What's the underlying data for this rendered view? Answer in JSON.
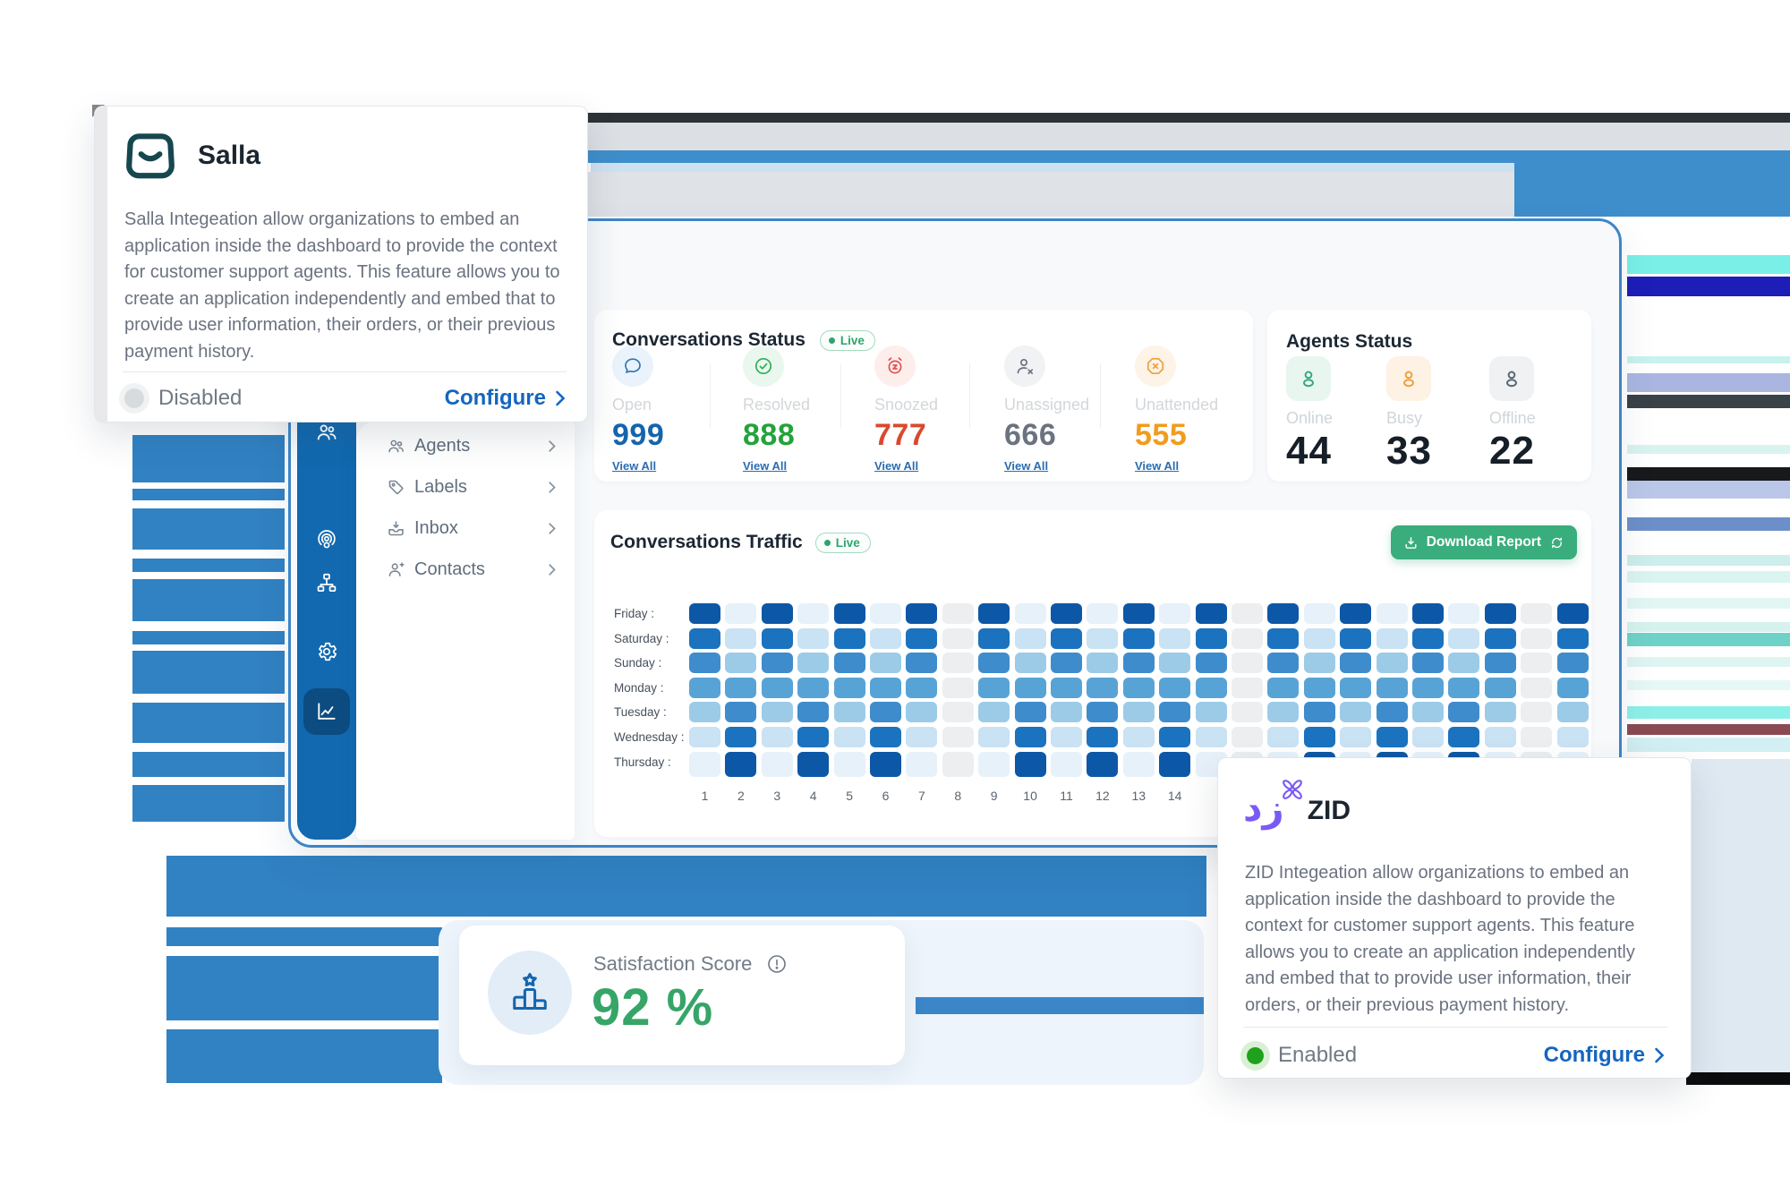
{
  "salla_card": {
    "title": "Salla",
    "description": "Salla Integeation allow organizations to embed an application inside the dashboard to provide the context for customer support agents. This feature allows you to create an application independently and embed that to provide user information, their orders, or their previous payment history.",
    "status_label": "Disabled",
    "configure_label": "Configure"
  },
  "zid_card": {
    "title": "ZID",
    "logo_text": "زد",
    "description": "ZID Integeation allow organizations to embed an application inside the dashboard to provide the context for customer support agents. This feature allows you to create an application independently and embed that to provide user information, their orders, or their previous payment history.",
    "status_label": "Enabled",
    "configure_label": "Configure"
  },
  "sidebar": {
    "rail_icons": [
      "team-icon",
      "analytics-icon",
      "broadcast-icon",
      "sitemap-icon",
      "settings-icon"
    ],
    "active_icon": "analytics-icon",
    "menu": [
      {
        "label": "Agents",
        "icon": "agents-icon"
      },
      {
        "label": "Labels",
        "icon": "labels-icon"
      },
      {
        "label": "Inbox",
        "icon": "inbox-icon"
      },
      {
        "label": "Contacts",
        "icon": "contacts-icon"
      }
    ]
  },
  "status_panel": {
    "title": "Conversations Status",
    "live_label": "Live",
    "view_all_label": "View All",
    "items": [
      {
        "label": "Open",
        "value": "999",
        "color": "#1565ab",
        "icon": "chat-icon",
        "icon_bg": "#eaf3fb",
        "icon_color": "#2e77b6"
      },
      {
        "label": "Resolved",
        "value": "888",
        "color": "#23a33a",
        "icon": "check-circle-icon",
        "icon_bg": "#e9f7ee",
        "icon_color": "#2fae52"
      },
      {
        "label": "Snoozed",
        "value": "777",
        "color": "#d9492f",
        "icon": "alarm-icon",
        "icon_bg": "#fdeeec",
        "icon_color": "#e05252"
      },
      {
        "label": "Unassigned",
        "value": "666",
        "color": "#6b7280",
        "icon": "user-x-icon",
        "icon_bg": "#f1f2f4",
        "icon_color": "#6b7280"
      },
      {
        "label": "Unattended",
        "value": "555",
        "color": "#f29b1d",
        "icon": "circle-x-icon",
        "icon_bg": "#fdf3e6",
        "icon_color": "#f0a03c"
      }
    ]
  },
  "agents_panel": {
    "title": "Agents Status",
    "items": [
      {
        "label": "Online",
        "value": "44",
        "icon_bg": "#e9f6f0",
        "icon_color": "#35a77c"
      },
      {
        "label": "Busy",
        "value": "33",
        "icon_bg": "#fdf2e4",
        "icon_color": "#f09e3c"
      },
      {
        "label": "Offline",
        "value": "22",
        "icon_bg": "#eff1f2",
        "icon_color": "#596673"
      }
    ]
  },
  "traffic_panel": {
    "title": "Conversations Traffic",
    "live_label": "Live",
    "download_label": "Download Report",
    "chart_data": {
      "type": "heatmap",
      "rows": [
        "Friday",
        "Saturday",
        "Sunday",
        "Monday",
        "Tuesday",
        "Wednesday",
        "Thursday"
      ],
      "row_label_suffix": " :",
      "x_tick_labels": [
        "1",
        "2",
        "3",
        "4",
        "5",
        "6",
        "7",
        "8",
        "9",
        "10",
        "11",
        "12",
        "13",
        "14"
      ],
      "total_columns": 25,
      "gray_column_every": 8,
      "row_levels": [
        {
          "odd": 6,
          "even": 0
        },
        {
          "odd": 5,
          "even": 1
        },
        {
          "odd": 4,
          "even": 2
        },
        {
          "odd": 3,
          "even": 3
        },
        {
          "odd": 2,
          "even": 4
        },
        {
          "odd": 1,
          "even": 5
        },
        {
          "odd": 0,
          "even": 6
        }
      ],
      "palette": [
        "#e7f1fa",
        "#c9e2f4",
        "#9ccbe8",
        "#58a3d6",
        "#3f8ccd",
        "#1b72bf",
        "#0d57a7"
      ],
      "gray_color": "#eceef0"
    }
  },
  "satisfaction_card": {
    "title": "Satisfaction Score",
    "value": "92 %"
  },
  "colors": {
    "dashboard_bar_blue": "#3182c3",
    "rail_blue": "#1269af",
    "active_tile_navy": "#0c4c80",
    "button_green": "#3aad7d",
    "configure_blue": "#1565c0",
    "satisfaction_green": "#36a567",
    "live_green": "#2da56b",
    "salla_logo_teal": "#16474f",
    "zid_logo_purple": "#7a5af5"
  }
}
